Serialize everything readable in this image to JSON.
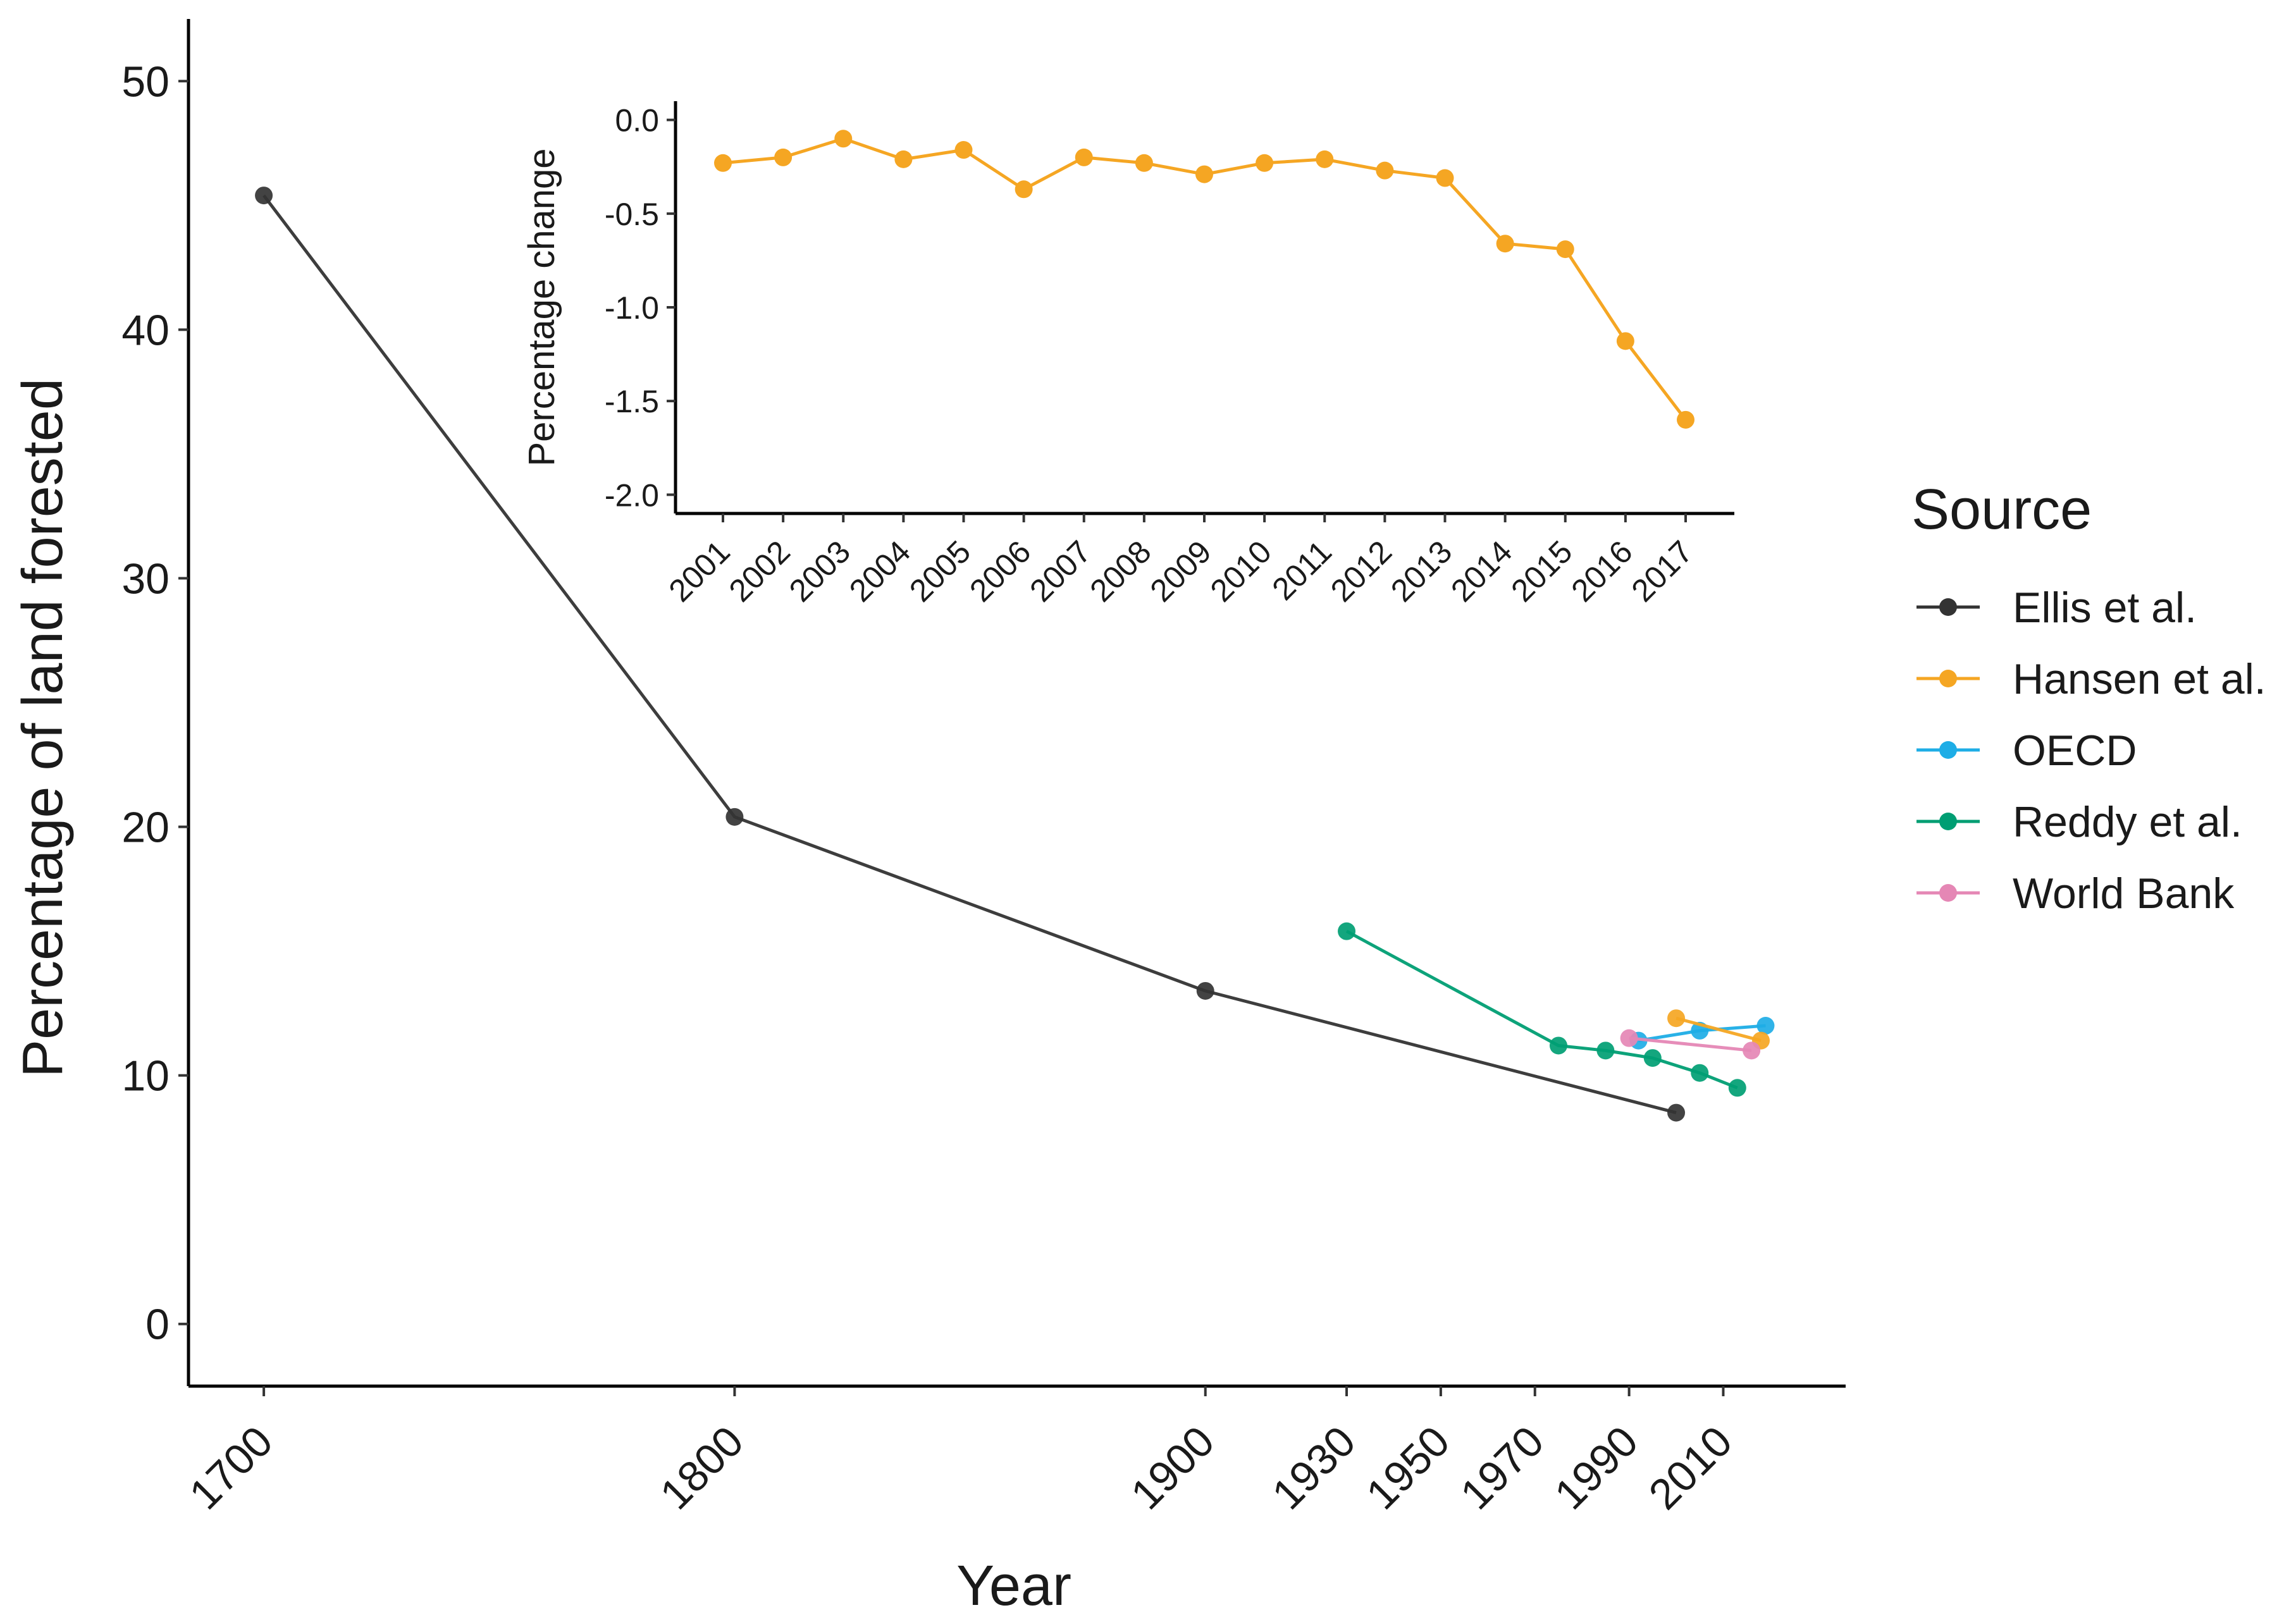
{
  "chart_data": [
    {
      "type": "line",
      "id": "main",
      "xlabel": "Year",
      "ylabel": "Percentage of land forested",
      "xticks": [
        1700,
        1800,
        1900,
        1930,
        1950,
        1970,
        1990,
        2010
      ],
      "yticks": [
        0,
        10,
        20,
        30,
        40,
        50
      ],
      "xlim": [
        1684,
        2036
      ],
      "ylim": [
        -2.5,
        52.5
      ],
      "legend": {
        "title": "Source",
        "position": "right",
        "entries": [
          "Ellis et al.",
          "Hansen et al.",
          "OECD",
          "Reddy et al.",
          "World Bank"
        ]
      },
      "series": [
        {
          "name": "Ellis et al.",
          "color": "#333333",
          "points": [
            [
              1700,
              45.4
            ],
            [
              1800,
              20.4
            ],
            [
              1900,
              13.4
            ],
            [
              2000,
              8.5
            ]
          ]
        },
        {
          "name": "Reddy et al.",
          "color": "#009E73",
          "points": [
            [
              1930,
              15.8
            ],
            [
              1975,
              11.2
            ],
            [
              1985,
              11.0
            ],
            [
              1995,
              10.7
            ],
            [
              2005,
              10.1
            ],
            [
              2013,
              9.5
            ]
          ]
        },
        {
          "name": "OECD",
          "color": "#1EADE6",
          "points": [
            [
              1992,
              11.4
            ],
            [
              2005,
              11.8
            ],
            [
              2019,
              12.0
            ]
          ]
        },
        {
          "name": "Hansen et al.",
          "color": "#F5A623",
          "points": [
            [
              2000,
              12.3
            ],
            [
              2018,
              11.4
            ]
          ]
        },
        {
          "name": "World Bank",
          "color": "#E587B5",
          "points": [
            [
              1990,
              11.5
            ],
            [
              2016,
              11.0
            ]
          ]
        }
      ]
    },
    {
      "type": "line",
      "id": "inset",
      "title": "",
      "xlabel": "",
      "ylabel": "Percentage change",
      "categories": [
        "2001",
        "2002",
        "2003",
        "2004",
        "2005",
        "2006",
        "2007",
        "2008",
        "2009",
        "2010",
        "2011",
        "2012",
        "2013",
        "2014",
        "2015",
        "2016",
        "2017"
      ],
      "yticks": [
        "0.0",
        "-0.5",
        "-1.0",
        "-1.5",
        "-2.0"
      ],
      "ytick_values": [
        0,
        -0.5,
        -1,
        -1.5,
        -2
      ],
      "ylim": [
        -2.1,
        0.1
      ],
      "series": [
        {
          "name": "Hansen et al.",
          "color": "#F5A623",
          "values": [
            -0.23,
            -0.2,
            -0.1,
            -0.21,
            -0.16,
            -0.37,
            -0.2,
            -0.23,
            -0.29,
            -0.23,
            -0.21,
            -0.27,
            -0.31,
            -0.66,
            -0.69,
            -1.18,
            -1.6
          ]
        }
      ]
    }
  ]
}
